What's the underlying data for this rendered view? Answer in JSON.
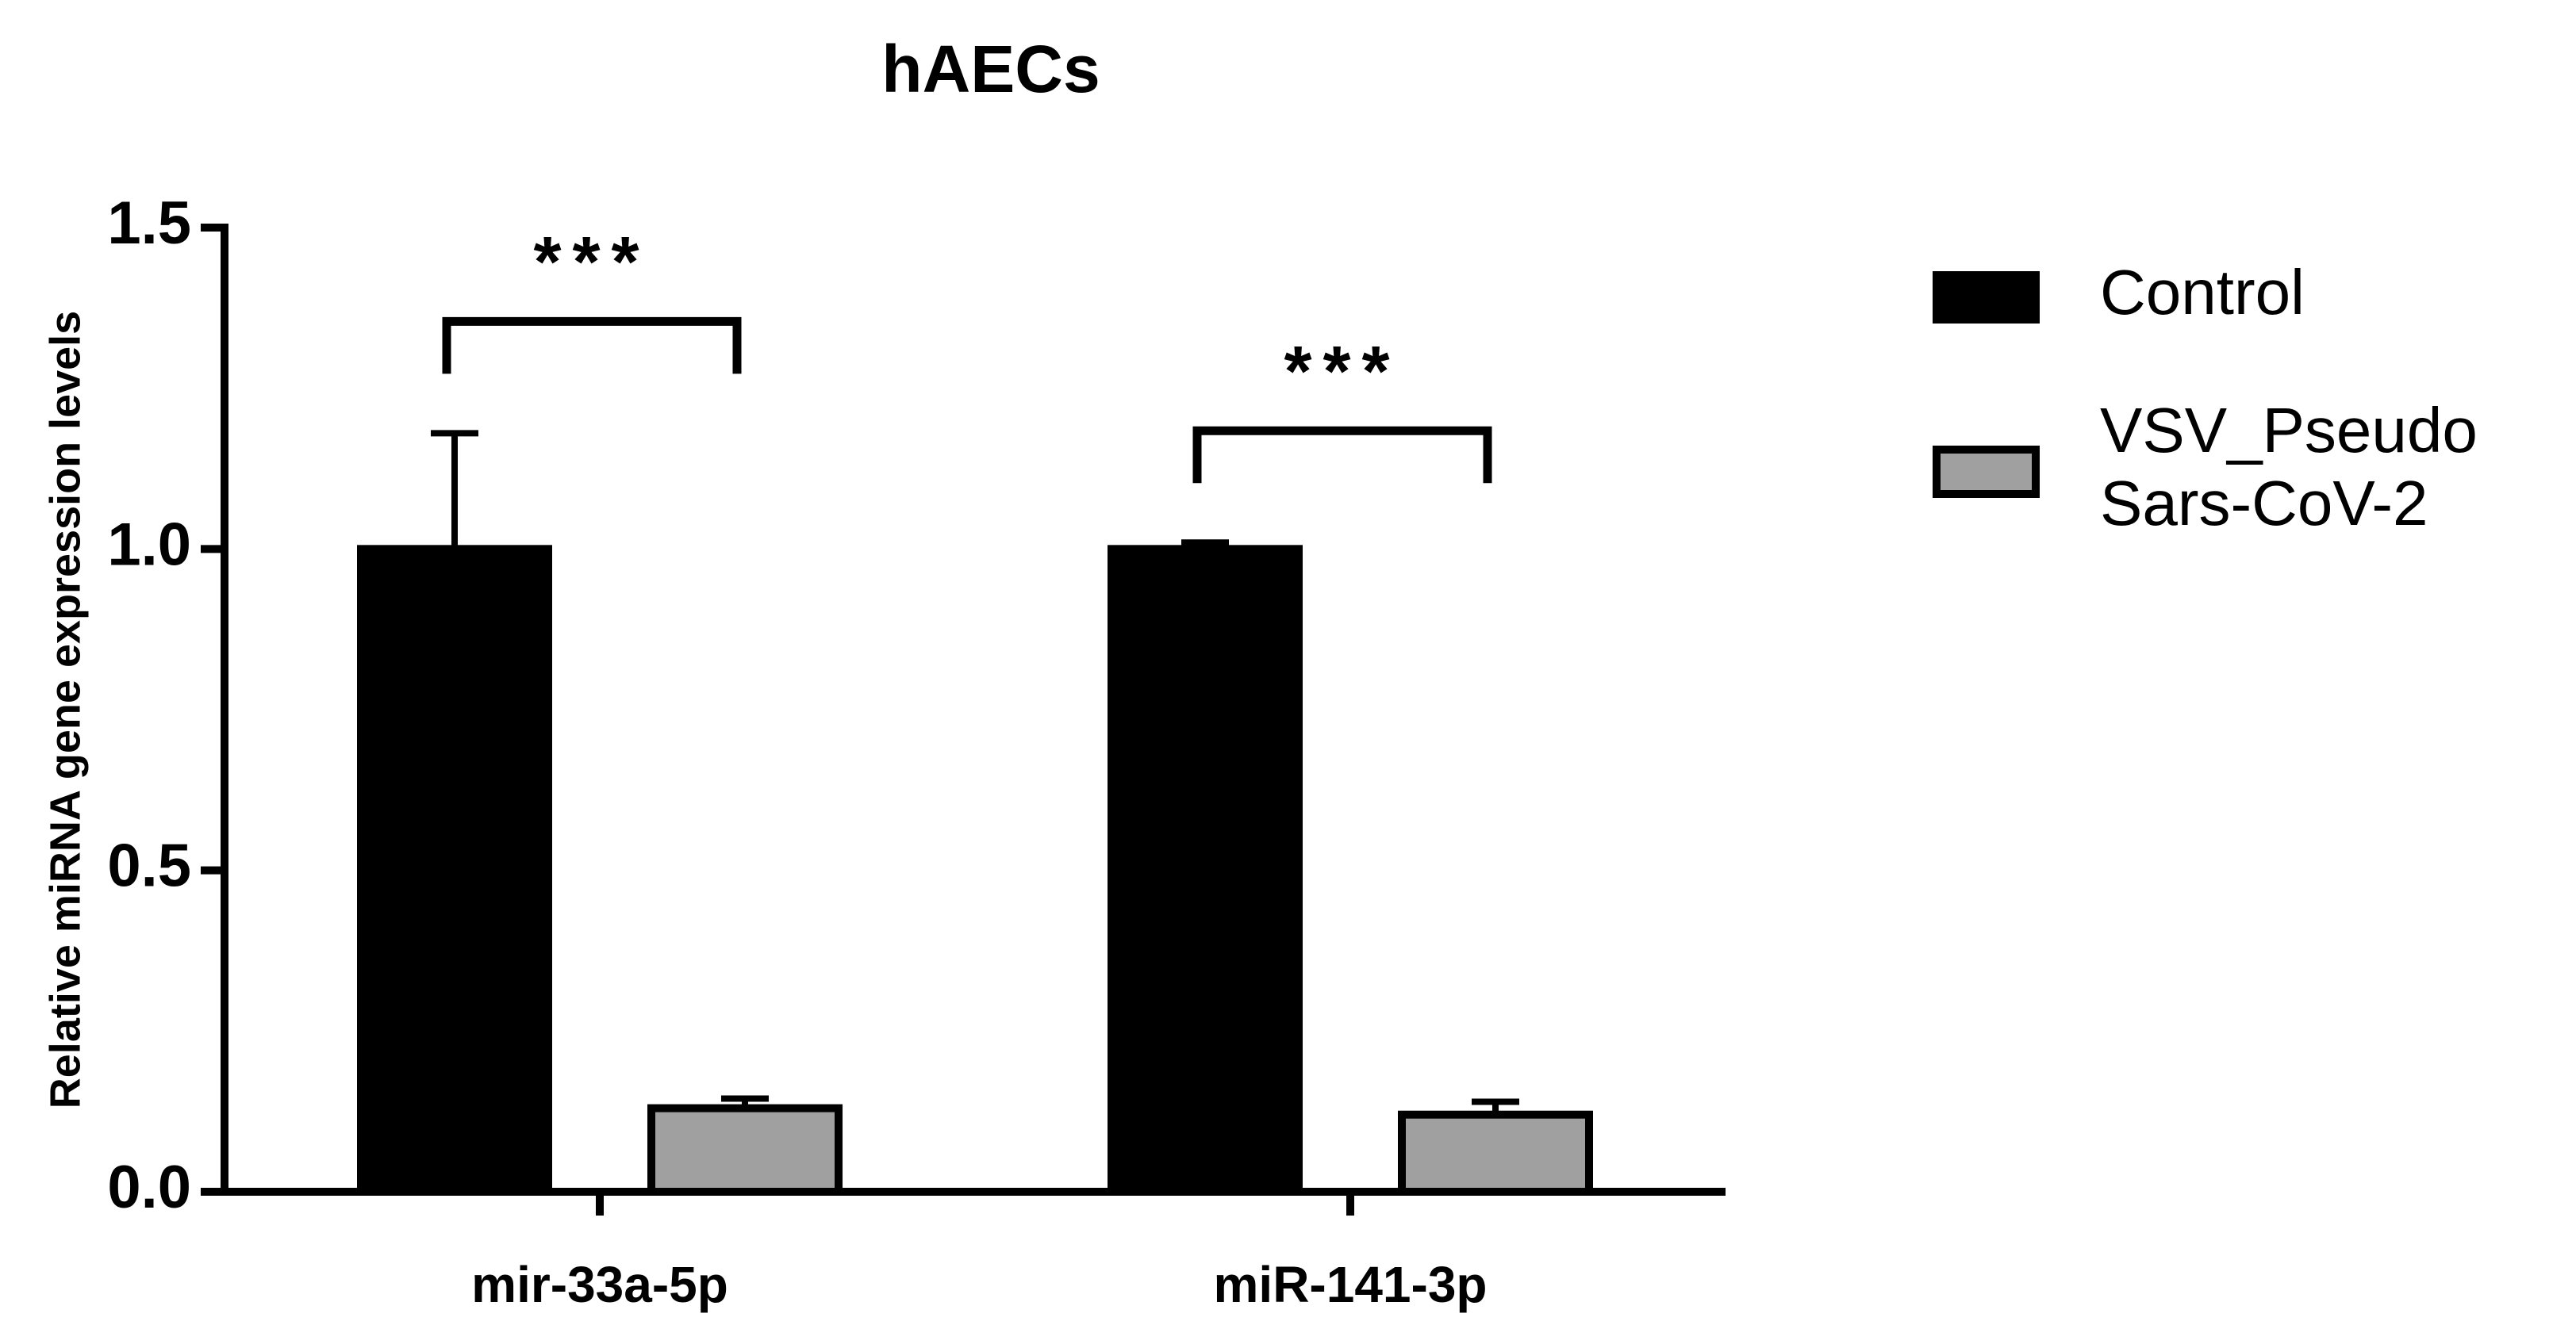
{
  "chart_data": {
    "type": "bar",
    "title": "hAECs",
    "y_label": "Relative miRNA gene expression levels",
    "categories": [
      "mir-33a-5p",
      "miR-141-3p"
    ],
    "series": [
      {
        "name": "Control",
        "color": "#000000",
        "values": [
          1.0,
          1.0
        ],
        "errors": [
          0.18,
          0.01
        ]
      },
      {
        "name": "VSV_Pseudo Sars-CoV-2",
        "color": "#a0a0a0",
        "values": [
          0.13,
          0.12
        ],
        "errors": [
          0.015,
          0.02
        ]
      }
    ],
    "annotations": [
      "***",
      "***"
    ],
    "ylim": [
      0,
      1.5
    ],
    "yticks": [
      {
        "value": 0,
        "label": "0.0"
      },
      0.5,
      {
        "value": 1,
        "label": "1.0"
      },
      1.5
    ],
    "grid": false,
    "legend": "right"
  }
}
